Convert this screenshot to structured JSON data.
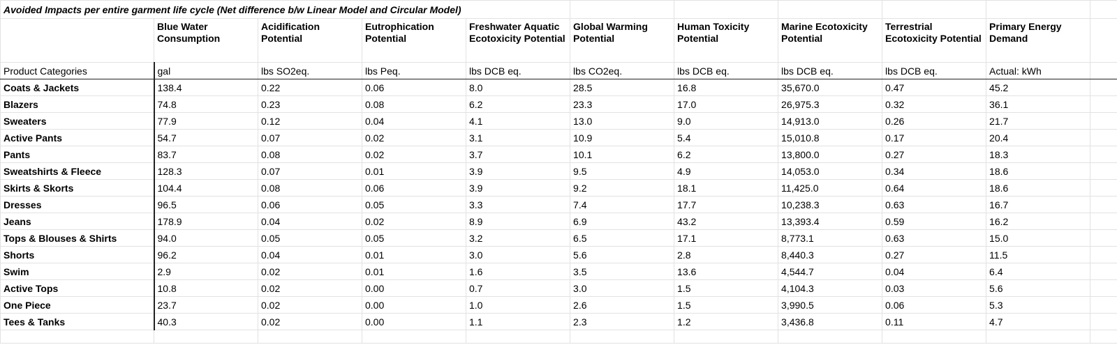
{
  "title": "Avoided Impacts per entire garment life cycle (Net difference b/w Linear Model and Circular Model)",
  "table": {
    "columns": [
      "Blue Water Consumption",
      "Acidification Potential",
      "Eutrophication Potential",
      "Freshwater Aquatic Ecotoxicity Potential",
      "Global Warming Potential",
      "Human Toxicity Potential",
      "Marine Ecotoxicity Potential",
      "Terrestrial Ecotoxicity Potential",
      "Primary Energy Demand"
    ],
    "units_label": "Product Categories",
    "units": [
      "gal",
      "lbs SO2eq.",
      "lbs Peq.",
      "lbs DCB eq.",
      "lbs CO2eq.",
      "lbs DCB eq.",
      "lbs DCB eq.",
      "lbs DCB eq.",
      "Actual: kWh"
    ],
    "rows": [
      {
        "category": "Coats & Jackets",
        "values": [
          "138.4",
          "0.22",
          "0.06",
          "8.0",
          "28.5",
          "16.8",
          "35,670.0",
          "0.47",
          "45.2"
        ]
      },
      {
        "category": "Blazers",
        "values": [
          "74.8",
          "0.23",
          "0.08",
          "6.2",
          "23.3",
          "17.0",
          "26,975.3",
          "0.32",
          "36.1"
        ]
      },
      {
        "category": "Sweaters",
        "values": [
          "77.9",
          "0.12",
          "0.04",
          "4.1",
          "13.0",
          "9.0",
          "14,913.0",
          "0.26",
          "21.7"
        ]
      },
      {
        "category": "Active Pants",
        "values": [
          "54.7",
          "0.07",
          "0.02",
          "3.1",
          "10.9",
          "5.4",
          "15,010.8",
          "0.17",
          "20.4"
        ]
      },
      {
        "category": "Pants",
        "values": [
          "83.7",
          "0.08",
          "0.02",
          "3.7",
          "10.1",
          "6.2",
          "13,800.0",
          "0.27",
          "18.3"
        ]
      },
      {
        "category": "Sweatshirts & Fleece",
        "values": [
          "128.3",
          "0.07",
          "0.01",
          "3.9",
          "9.5",
          "4.9",
          "14,053.0",
          "0.34",
          "18.6"
        ]
      },
      {
        "category": "Skirts & Skorts",
        "values": [
          "104.4",
          "0.08",
          "0.06",
          "3.9",
          "9.2",
          "18.1",
          "11,425.0",
          "0.64",
          "18.6"
        ]
      },
      {
        "category": "Dresses",
        "values": [
          "96.5",
          "0.06",
          "0.05",
          "3.3",
          "7.4",
          "17.7",
          "10,238.3",
          "0.63",
          "16.7"
        ]
      },
      {
        "category": "Jeans",
        "values": [
          "178.9",
          "0.04",
          "0.02",
          "8.9",
          "6.9",
          "43.2",
          "13,393.4",
          "0.59",
          "16.2"
        ]
      },
      {
        "category": "Tops & Blouses & Shirts",
        "values": [
          "94.0",
          "0.05",
          "0.05",
          "3.2",
          "6.5",
          "17.1",
          "8,773.1",
          "0.63",
          "15.0"
        ]
      },
      {
        "category": "Shorts",
        "values": [
          "96.2",
          "0.04",
          "0.01",
          "3.0",
          "5.6",
          "2.8",
          "8,440.3",
          "0.27",
          "11.5"
        ]
      },
      {
        "category": "Swim",
        "values": [
          "2.9",
          "0.02",
          "0.01",
          "1.6",
          "3.5",
          "13.6",
          "4,544.7",
          "0.04",
          "6.4"
        ]
      },
      {
        "category": "Active Tops",
        "values": [
          "10.8",
          "0.02",
          "0.00",
          "0.7",
          "3.0",
          "1.5",
          "4,104.3",
          "0.03",
          "5.6"
        ]
      },
      {
        "category": "One Piece",
        "values": [
          "23.7",
          "0.02",
          "0.00",
          "1.0",
          "2.6",
          "1.5",
          "3,990.5",
          "0.06",
          "5.3"
        ]
      },
      {
        "category": "Tees & Tanks",
        "values": [
          "40.3",
          "0.02",
          "0.00",
          "1.1",
          "2.3",
          "1.2",
          "3,436.8",
          "0.11",
          "4.7"
        ]
      }
    ]
  }
}
